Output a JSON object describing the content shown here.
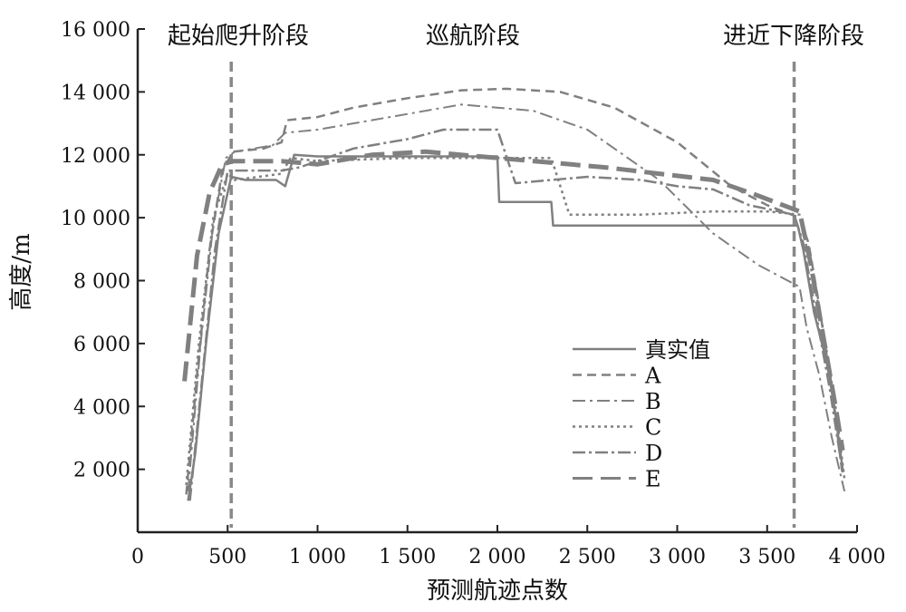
{
  "chart_data": {
    "type": "line",
    "xlabel": "预测航迹点数",
    "ylabel": "高度/m",
    "xlim": [
      0,
      4000
    ],
    "ylim": [
      0,
      16000
    ],
    "x_ticks": [
      0,
      500,
      1000,
      1500,
      2000,
      2500,
      3000,
      3500,
      4000
    ],
    "x_tick_labels": [
      "0",
      "500",
      "1 000",
      "1 500",
      "2 000",
      "2 500",
      "3 000",
      "3 500",
      "4 000"
    ],
    "y_ticks": [
      2000,
      4000,
      6000,
      8000,
      10000,
      12000,
      14000,
      16000
    ],
    "y_tick_labels": [
      "2 000",
      "4 000",
      "6 000",
      "8 000",
      "10 000",
      "12 000",
      "14 000",
      "16 000"
    ],
    "grid": false,
    "legend_position": "lower-right",
    "phases": [
      {
        "label": "起始爬升阶段"
      },
      {
        "label": "巡航阶段"
      },
      {
        "label": "进近下降阶段"
      }
    ],
    "phase_boundaries": [
      520,
      3650
    ],
    "series": [
      {
        "name": "真实值",
        "color": "#808080",
        "dash": "",
        "width": 2.5,
        "x": [
          280,
          320,
          380,
          450,
          520,
          600,
          770,
          820,
          870,
          1000,
          1500,
          2000,
          2010,
          2300,
          2310,
          2600,
          2900,
          3200,
          3500,
          3670,
          3700,
          3760,
          3850,
          3920
        ],
        "y": [
          1000,
          2500,
          6000,
          9500,
          11300,
          11200,
          11200,
          11000,
          12000,
          11950,
          11950,
          11950,
          10500,
          10500,
          9750,
          9750,
          9750,
          9750,
          9750,
          9750,
          9000,
          7000,
          5000,
          2000
        ]
      },
      {
        "name": "A",
        "color": "#808080",
        "dash": "10,6",
        "width": 2.5,
        "x": [
          270,
          330,
          400,
          470,
          530,
          700,
          800,
          830,
          1000,
          1200,
          1500,
          1800,
          2050,
          2350,
          2650,
          3000,
          3300,
          3500,
          3680,
          3730,
          3790,
          3860,
          3920
        ],
        "y": [
          1200,
          5000,
          9000,
          11500,
          12100,
          12200,
          12400,
          13100,
          13200,
          13500,
          13800,
          14050,
          14100,
          14000,
          13500,
          12400,
          11000,
          10400,
          10000,
          9200,
          7200,
          4500,
          1800
        ]
      },
      {
        "name": "B",
        "color": "#808080",
        "dash": "14,5,3,5",
        "width": 2,
        "x": [
          280,
          350,
          420,
          490,
          540,
          750,
          820,
          1000,
          1500,
          1800,
          2200,
          2500,
          2900,
          3200,
          3450,
          3680,
          3720,
          3790,
          3860,
          3930
        ],
        "y": [
          1300,
          6000,
          9800,
          11900,
          12100,
          12300,
          12700,
          12800,
          13300,
          13600,
          13400,
          12800,
          11200,
          9500,
          8500,
          7800,
          6500,
          5000,
          3000,
          1300
        ]
      },
      {
        "name": "C",
        "color": "#808080",
        "dash": "3,4",
        "width": 2.5,
        "x": [
          270,
          340,
          420,
          500,
          540,
          800,
          850,
          1000,
          1500,
          2000,
          2300,
          2400,
          2800,
          3200,
          3500,
          3680,
          3740,
          3810,
          3880,
          3930
        ],
        "y": [
          1500,
          6000,
          10000,
          11400,
          11200,
          11400,
          11900,
          11800,
          11900,
          11900,
          11900,
          10100,
          10100,
          10200,
          10200,
          10100,
          8500,
          6500,
          4000,
          1700
        ]
      },
      {
        "name": "D",
        "color": "#808080",
        "dash": "14,4,3,4",
        "width": 2.5,
        "x": [
          290,
          360,
          430,
          500,
          540,
          800,
          900,
          1200,
          1500,
          1700,
          2000,
          2100,
          2500,
          2800,
          3000,
          3200,
          3400,
          3650,
          3700,
          3770,
          3850,
          3920
        ],
        "y": [
          1000,
          5000,
          9000,
          11500,
          11500,
          11500,
          11600,
          12200,
          12500,
          12800,
          12800,
          11100,
          11300,
          11200,
          11000,
          10900,
          10400,
          10100,
          9200,
          7000,
          4500,
          1900
        ]
      },
      {
        "name": "E",
        "color": "#808080",
        "dash": "22,9",
        "width": 5,
        "x": [
          260,
          330,
          400,
          470,
          530,
          800,
          1000,
          1300,
          1600,
          2000,
          2300,
          2600,
          2900,
          3200,
          3450,
          3680,
          3740,
          3810,
          3880,
          3920
        ],
        "y": [
          4800,
          8800,
          10800,
          11700,
          11800,
          11800,
          11700,
          12000,
          12100,
          11900,
          11750,
          11600,
          11400,
          11200,
          10700,
          10200,
          8600,
          6300,
          4000,
          2600
        ]
      }
    ]
  }
}
